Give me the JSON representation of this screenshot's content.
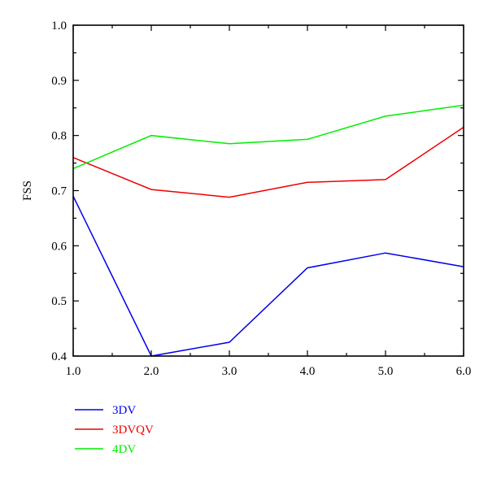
{
  "chart_data": {
    "type": "line",
    "title": "",
    "xlabel": "",
    "ylabel": "FSS",
    "x": [
      1.0,
      2.0,
      3.0,
      4.0,
      5.0,
      6.0
    ],
    "xlim": [
      1.0,
      6.0
    ],
    "ylim": [
      0.4,
      1.0
    ],
    "x_ticks": [
      "1.0",
      "2.0",
      "3.0",
      "4.0",
      "5.0",
      "6.0"
    ],
    "y_ticks": [
      "0.4",
      "0.5",
      "0.6",
      "0.7",
      "0.8",
      "0.9",
      "1.0"
    ],
    "grid": false,
    "legend_position": "bottom-left",
    "series": [
      {
        "name": "3DV",
        "color": "#0000ee",
        "values": [
          0.69,
          0.4,
          0.425,
          0.56,
          0.587,
          0.562
        ]
      },
      {
        "name": "3DVQV",
        "color": "#ee0000",
        "values": [
          0.76,
          0.702,
          0.688,
          0.715,
          0.72,
          0.815
        ]
      },
      {
        "name": "4DV",
        "color": "#00ee00",
        "values": [
          0.74,
          0.8,
          0.785,
          0.793,
          0.835,
          0.855
        ]
      }
    ]
  }
}
